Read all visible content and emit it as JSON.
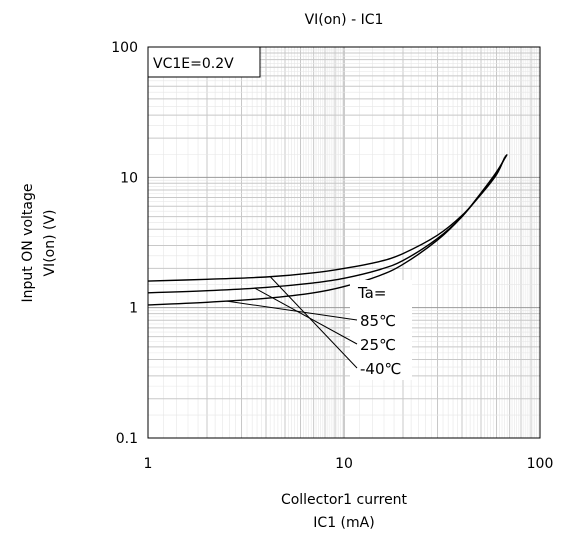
{
  "chart_data": {
    "type": "line",
    "title": "VI(on) - IC1",
    "xlabel_line1": "Collector1 current",
    "xlabel_line2": "IC1 (mA)",
    "ylabel_line1": "Input ON voltage",
    "ylabel_line2": "VI(on) (V)",
    "x_scale": "log",
    "y_scale": "log",
    "xlim": [
      1,
      100
    ],
    "ylim": [
      0.1,
      100
    ],
    "x_ticks": [
      "1",
      "10",
      "100"
    ],
    "y_ticks": [
      "100",
      "10",
      "1",
      "0.1"
    ],
    "grid": true,
    "condition_label": "VC1E=0.2V",
    "legend_header": "Ta=",
    "series": [
      {
        "name": "85℃",
        "x": [
          1,
          2,
          4,
          7,
          10,
          15,
          20,
          30,
          40,
          50,
          60,
          68
        ],
        "y": [
          1.05,
          1.1,
          1.18,
          1.3,
          1.45,
          1.75,
          2.15,
          3.3,
          5.0,
          7.6,
          11.0,
          15.0
        ]
      },
      {
        "name": "25℃",
        "x": [
          1,
          2,
          4,
          7,
          10,
          15,
          20,
          30,
          40,
          50,
          60,
          67
        ],
        "y": [
          1.3,
          1.35,
          1.43,
          1.55,
          1.68,
          1.95,
          2.3,
          3.4,
          5.0,
          7.5,
          10.8,
          14.7
        ]
      },
      {
        "name": "-40℃",
        "x": [
          1,
          2,
          4,
          7,
          10,
          15,
          20,
          30,
          40,
          50,
          60,
          66
        ],
        "y": [
          1.6,
          1.65,
          1.72,
          1.85,
          2.0,
          2.25,
          2.6,
          3.6,
          5.1,
          7.4,
          10.5,
          14.2
        ]
      }
    ]
  }
}
